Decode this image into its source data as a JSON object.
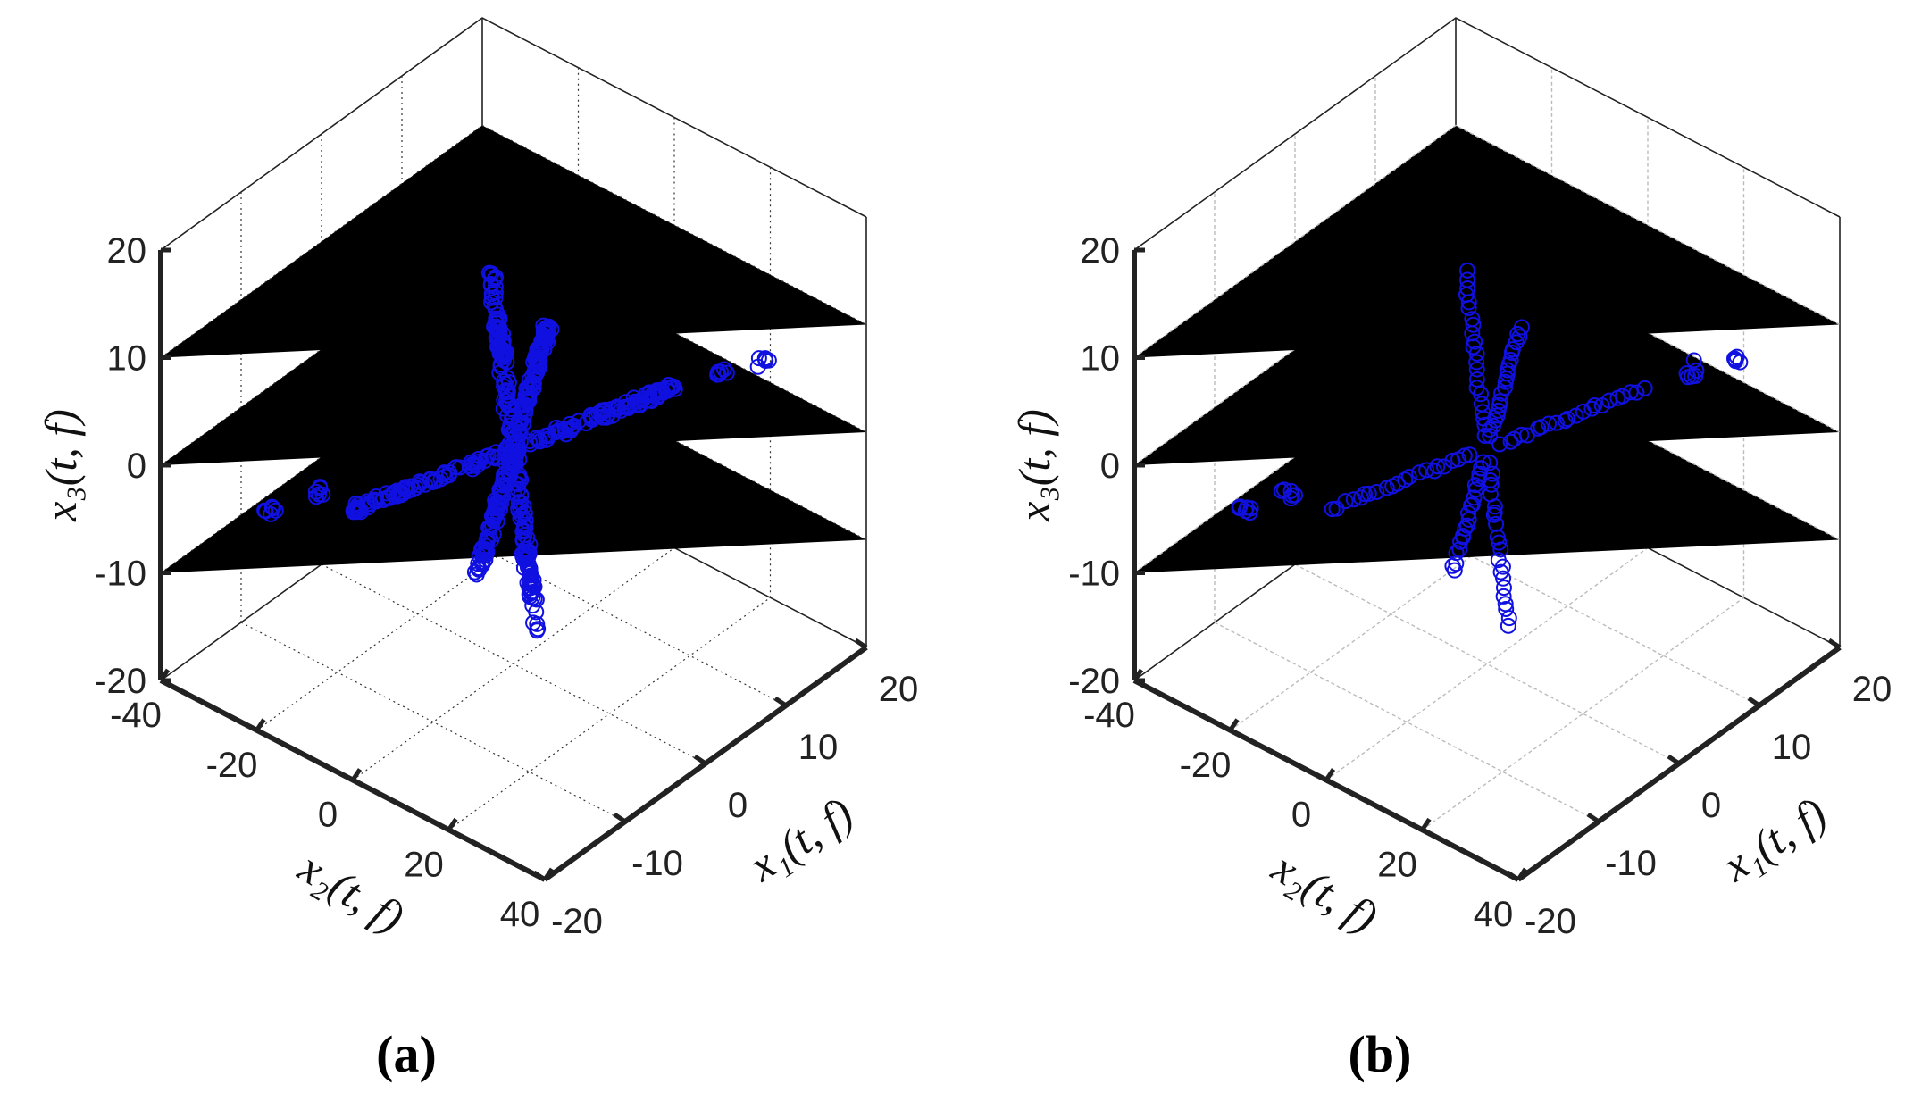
{
  "chart_data": [
    {
      "type": "scatter",
      "panel_label": "(a)",
      "xlabel": "x₁(t, f)",
      "ylabel": "x₂(t, f)",
      "zlabel": "x₃(t, f)",
      "xlim": [
        -20,
        20
      ],
      "ylim": [
        -40,
        40
      ],
      "zlim": [
        -20,
        20
      ],
      "x_ticks": [
        "-20",
        "-10",
        "0",
        "10",
        "20"
      ],
      "y_ticks": [
        "-40",
        "-20",
        "0",
        "20",
        "40"
      ],
      "z_ticks": [
        "-20",
        "-10",
        "0",
        "10",
        "20"
      ],
      "grid": "dotted",
      "marker": "open-circle",
      "color": "#1010e0",
      "density": "dense",
      "rays": [
        {
          "name": "up-left",
          "x": 0.8,
          "y": -6,
          "z": 15
        },
        {
          "name": "up-right",
          "x": -4,
          "y": 14,
          "z": 17
        },
        {
          "name": "right",
          "x": 8,
          "y": 20,
          "z": 6
        },
        {
          "name": "left",
          "x": -8,
          "y": -20,
          "z": -6
        },
        {
          "name": "down-left",
          "x": 4,
          "y": -14,
          "z": -17
        },
        {
          "name": "down-right",
          "x": -0.8,
          "y": 6,
          "z": -15
        }
      ],
      "clusters": [
        {
          "x": 10,
          "y": 26,
          "z": 8
        },
        {
          "x": 12,
          "y": 32,
          "z": 9
        },
        {
          "x": -9,
          "y": -26,
          "z": -5
        },
        {
          "x": -11,
          "y": -32,
          "z": -7
        }
      ]
    },
    {
      "type": "scatter",
      "panel_label": "(b)",
      "xlabel": "x₁(t, f)",
      "ylabel": "x₂(t, f)",
      "zlabel": "x₃(t, f)",
      "xlim": [
        -20,
        20
      ],
      "ylim": [
        -40,
        40
      ],
      "zlim": [
        -20,
        20
      ],
      "x_ticks": [
        "-20",
        "-10",
        "0",
        "10",
        "20"
      ],
      "y_ticks": [
        "-40",
        "-20",
        "0",
        "20",
        "40"
      ],
      "z_ticks": [
        "-20",
        "-10",
        "0",
        "10",
        "20"
      ],
      "grid": "solid-light",
      "marker": "open-circle",
      "color": "#1010e0",
      "density": "sparse",
      "rays": [
        {
          "name": "up-left",
          "x": 0.8,
          "y": -6,
          "z": 15
        },
        {
          "name": "up-right",
          "x": -4,
          "y": 14,
          "z": 17
        },
        {
          "name": "right",
          "x": 8,
          "y": 20,
          "z": 6
        },
        {
          "name": "left",
          "x": -8,
          "y": -20,
          "z": -6
        },
        {
          "name": "down-left",
          "x": 4,
          "y": -14,
          "z": -17
        },
        {
          "name": "down-right",
          "x": -0.8,
          "y": 6,
          "z": -15
        }
      ],
      "clusters": [
        {
          "x": 10,
          "y": 26,
          "z": 8
        },
        {
          "x": 12,
          "y": 32,
          "z": 9
        },
        {
          "x": -9,
          "y": -26,
          "z": -5
        },
        {
          "x": -11,
          "y": -32,
          "z": -7
        }
      ]
    }
  ]
}
